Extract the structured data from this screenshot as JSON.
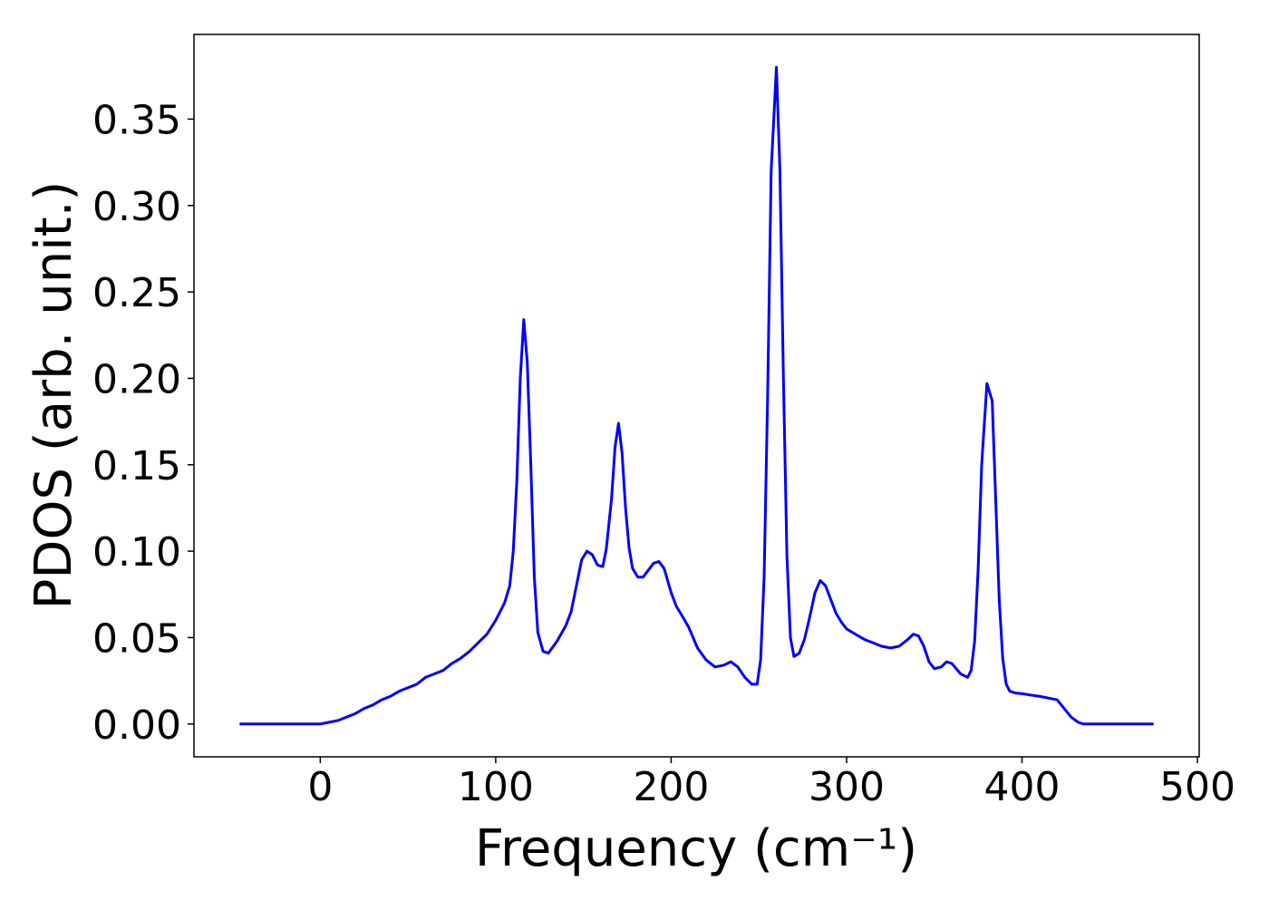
{
  "chart_data": {
    "type": "line",
    "xlabel": "Frequency (cm⁻¹)",
    "ylabel": "PDOS (arb. unit.)",
    "color": "#0000ff",
    "x": [
      -46,
      -40,
      -30,
      -20,
      -10,
      0,
      5,
      10,
      15,
      20,
      25,
      30,
      35,
      40,
      45,
      50,
      55,
      60,
      65,
      70,
      75,
      80,
      85,
      90,
      95,
      100,
      105,
      108,
      110,
      112,
      114,
      116,
      118,
      120,
      122,
      124,
      127,
      130,
      135,
      140,
      143,
      146,
      149,
      152,
      155,
      158,
      161,
      163,
      166,
      168,
      170,
      172,
      174,
      176,
      178,
      181,
      184,
      187,
      190,
      193,
      196,
      200,
      203,
      206,
      210,
      215,
      220,
      225,
      230,
      234,
      238,
      242,
      246,
      249,
      251,
      253,
      255,
      257,
      260,
      262,
      264,
      266,
      268,
      270,
      273,
      276,
      279,
      282,
      285,
      288,
      291,
      294,
      297,
      300,
      305,
      310,
      315,
      320,
      325,
      330,
      335,
      338,
      341,
      344,
      347,
      350,
      354,
      357,
      360,
      365,
      369,
      371,
      373,
      375,
      377,
      380,
      383,
      385,
      387,
      389,
      391,
      393,
      396,
      400,
      410,
      420,
      424,
      428,
      432,
      435,
      440,
      450,
      460,
      475
    ],
    "values": [
      0,
      0,
      0,
      0,
      0,
      0,
      0.001,
      0.002,
      0.004,
      0.006,
      0.009,
      0.011,
      0.014,
      0.016,
      0.019,
      0.021,
      0.023,
      0.027,
      0.029,
      0.031,
      0.035,
      0.038,
      0.042,
      0.047,
      0.052,
      0.06,
      0.07,
      0.08,
      0.1,
      0.14,
      0.2,
      0.234,
      0.209,
      0.15,
      0.085,
      0.053,
      0.042,
      0.041,
      0.048,
      0.057,
      0.065,
      0.08,
      0.095,
      0.1,
      0.098,
      0.092,
      0.091,
      0.101,
      0.13,
      0.16,
      0.174,
      0.157,
      0.125,
      0.102,
      0.09,
      0.085,
      0.085,
      0.089,
      0.093,
      0.094,
      0.09,
      0.076,
      0.068,
      0.063,
      0.056,
      0.044,
      0.037,
      0.033,
      0.034,
      0.036,
      0.033,
      0.027,
      0.023,
      0.023,
      0.037,
      0.085,
      0.19,
      0.32,
      0.38,
      0.32,
      0.2,
      0.097,
      0.05,
      0.039,
      0.041,
      0.049,
      0.062,
      0.076,
      0.083,
      0.08,
      0.072,
      0.064,
      0.059,
      0.055,
      0.052,
      0.049,
      0.047,
      0.045,
      0.044,
      0.045,
      0.049,
      0.052,
      0.051,
      0.045,
      0.036,
      0.032,
      0.033,
      0.036,
      0.035,
      0.029,
      0.027,
      0.031,
      0.048,
      0.09,
      0.15,
      0.197,
      0.187,
      0.13,
      0.072,
      0.038,
      0.023,
      0.019,
      0.018,
      0.0175,
      0.016,
      0.014,
      0.009,
      0.004,
      0.001,
      0,
      0,
      0,
      0,
      0
    ],
    "xlim": [
      -72,
      501
    ],
    "ylim": [
      -0.019,
      0.399
    ],
    "xticks": [
      0,
      100,
      200,
      300,
      400,
      500
    ],
    "yticks": [
      {
        "value": 0,
        "label": "0.00"
      },
      {
        "value": 0.05,
        "label": "0.05"
      },
      {
        "value": 0.1,
        "label": "0.10"
      },
      {
        "value": 0.15,
        "label": "0.15"
      },
      {
        "value": 0.2,
        "label": "0.20"
      },
      {
        "value": 0.25,
        "label": "0.25"
      },
      {
        "value": 0.3,
        "label": "0.30"
      },
      {
        "value": 0.35,
        "label": "0.35"
      }
    ]
  }
}
